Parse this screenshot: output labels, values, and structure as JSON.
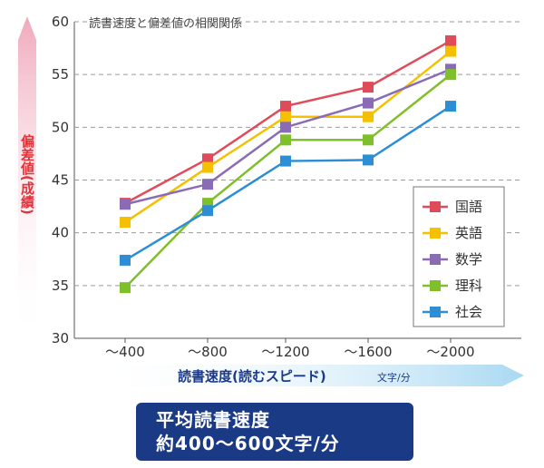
{
  "chart_data": {
    "type": "line",
    "title": "読書速度と偏差値の相関関係",
    "xlabel": "読書速度(読むスピード)",
    "xlabel_unit": "文字/分",
    "ylabel": "偏差値(成績)",
    "categories": [
      "〜400",
      "〜800",
      "〜1200",
      "〜1600",
      "〜2000"
    ],
    "ylim": [
      30,
      60
    ],
    "yticks": [
      "30",
      "35",
      "40",
      "45",
      "50",
      "55",
      "60"
    ],
    "grid": "horizontal dashed",
    "legend_position": "right",
    "series": [
      {
        "name": "国語",
        "color": "#e04b5a",
        "values": [
          42.8,
          47.0,
          52.0,
          53.8,
          58.2
        ]
      },
      {
        "name": "英語",
        "color": "#f5c000",
        "values": [
          41.0,
          46.2,
          51.0,
          51.0,
          57.2
        ]
      },
      {
        "name": "数学",
        "color": "#8a6bb5",
        "values": [
          42.7,
          44.6,
          50.0,
          52.3,
          55.5
        ]
      },
      {
        "name": "理科",
        "color": "#7fbf2a",
        "values": [
          34.8,
          42.8,
          48.8,
          48.8,
          55.0
        ]
      },
      {
        "name": "社会",
        "color": "#2c8fd6",
        "values": [
          37.4,
          42.1,
          46.8,
          46.9,
          52.0
        ]
      }
    ]
  },
  "summary": {
    "line1": "平均読書速度",
    "line2": "約400〜600文字/分"
  },
  "colors": {
    "y_arrow": "#f3b8c8",
    "x_arrow": "#bfe3f5",
    "y_label": "#e0333a",
    "x_label": "#1b3a8a",
    "summary_bg": "#1b3a85"
  }
}
